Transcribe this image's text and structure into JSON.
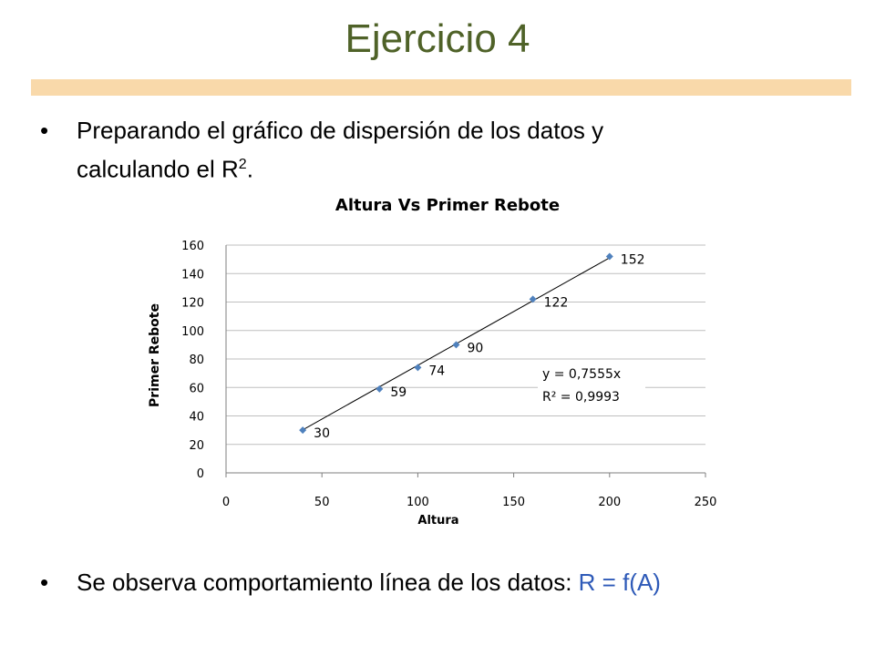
{
  "slide": {
    "title": "Ejercicio 4",
    "bullet1_line1": "Preparando el gráfico de dispersión de los datos y",
    "bullet1_line2": "calculando el R",
    "bullet1_sup": "2",
    "bullet1_end": ".",
    "bullet2_text": "Se observa comportamiento línea de los datos: ",
    "bullet2_formula": "R = f(A)",
    "bullet_glyph": "•",
    "colors": {
      "title": "#4f6228",
      "bar": "#f9d9aa",
      "formula": "#2e5ab8",
      "marker": "#4f81bd"
    }
  },
  "chart_data": {
    "type": "scatter",
    "title": "Altura Vs Primer Rebote",
    "xlabel": "Altura",
    "ylabel": "Primer Rebote",
    "xlim": [
      0,
      250
    ],
    "ylim": [
      0,
      160
    ],
    "xticks": [
      0,
      50,
      100,
      150,
      200,
      250
    ],
    "yticks": [
      0,
      20,
      40,
      60,
      80,
      100,
      120,
      140,
      160
    ],
    "grid": "horizontal",
    "series": [
      {
        "x": [
          40,
          80,
          100,
          120,
          160,
          200
        ],
        "y": [
          30,
          59,
          74,
          90,
          122,
          152
        ],
        "labels": [
          "30",
          "59",
          "74",
          "90",
          "122",
          "152"
        ]
      }
    ],
    "trendline": {
      "type": "linear",
      "slope": 0.7555,
      "equation": "y = 0,7555x",
      "r2": "R² = 0,9993"
    }
  }
}
